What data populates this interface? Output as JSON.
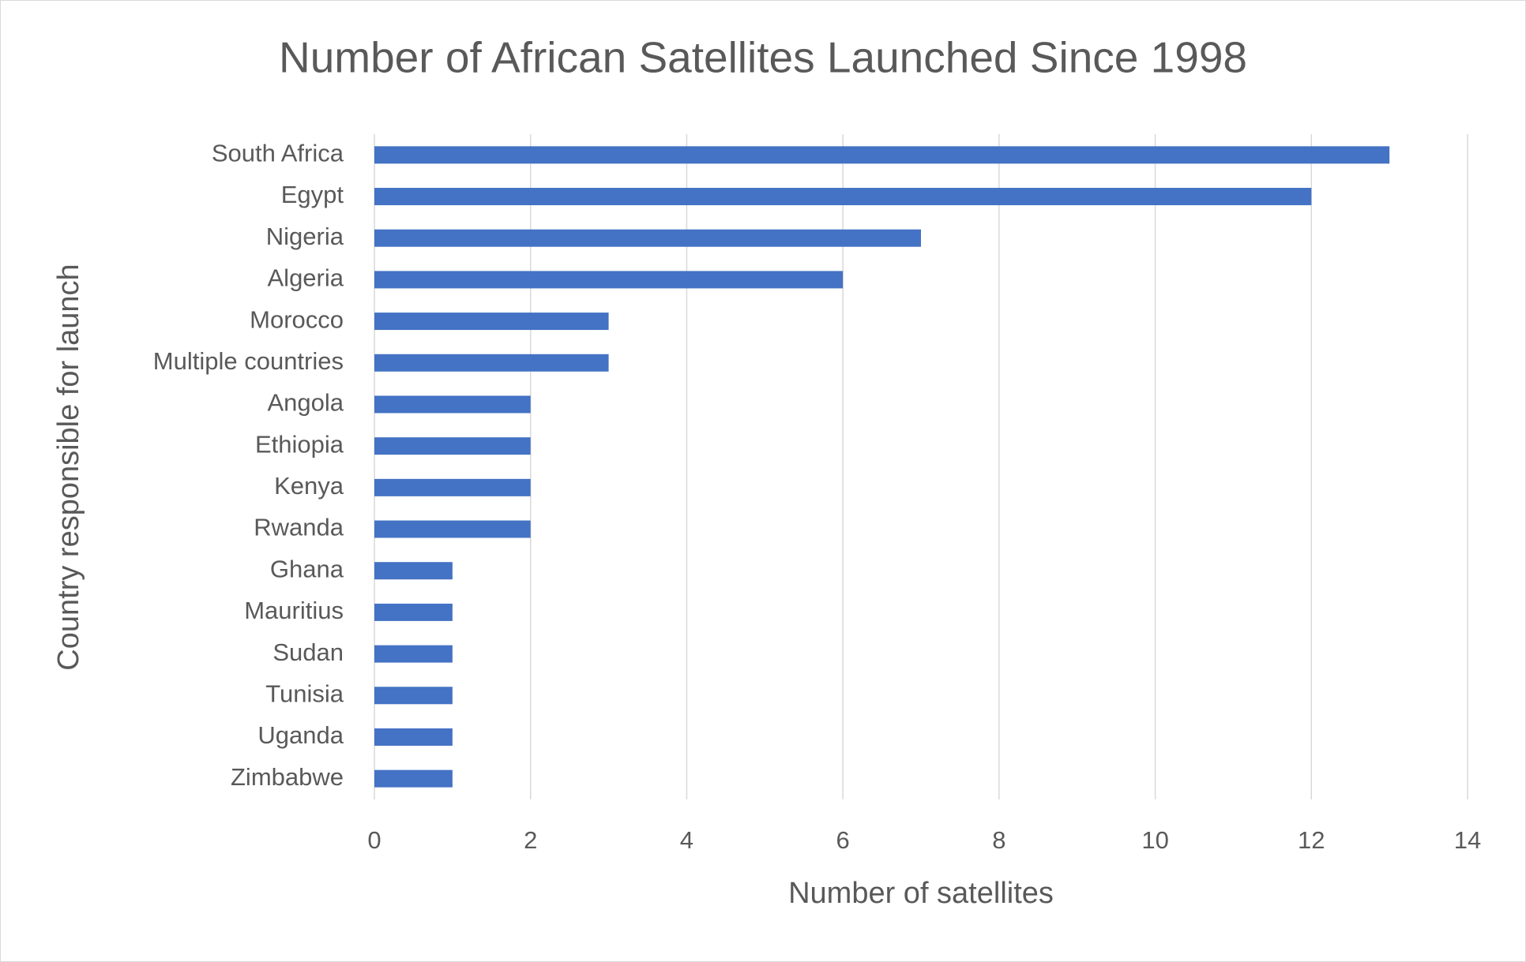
{
  "chart_data": {
    "type": "bar",
    "orientation": "horizontal",
    "title": "Number of African Satellites Launched Since 1998",
    "xlabel": "Number of satellites",
    "ylabel": "Country responsible for launch",
    "categories": [
      "South Africa",
      "Egypt",
      "Nigeria",
      "Algeria",
      "Morocco",
      "Multiple countries",
      "Angola",
      "Ethiopia",
      "Kenya",
      "Rwanda",
      "Ghana",
      "Mauritius",
      "Sudan",
      "Tunisia",
      "Uganda",
      "Zimbabwe"
    ],
    "values": [
      13,
      12,
      7,
      6,
      3,
      3,
      2,
      2,
      2,
      2,
      1,
      1,
      1,
      1,
      1,
      1
    ],
    "color": "#4472c4",
    "xlim": [
      0,
      14
    ],
    "xticks": [
      0,
      2,
      4,
      6,
      8,
      10,
      12,
      14
    ],
    "grid": true
  }
}
